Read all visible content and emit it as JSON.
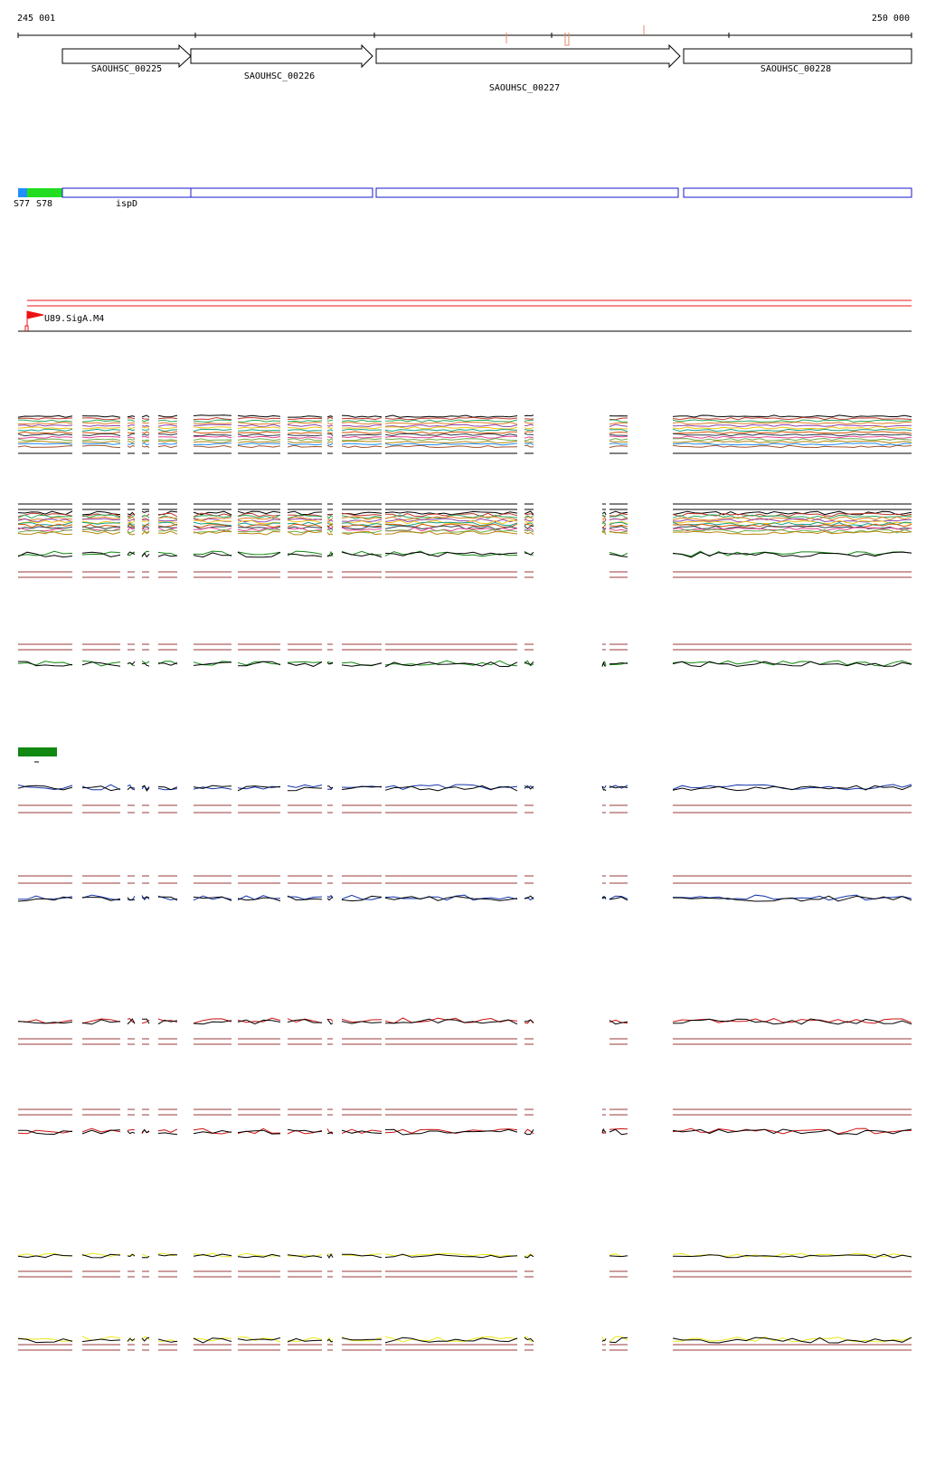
{
  "coordinates": {
    "start_label": "245 001",
    "end_label": "250 000",
    "start": 245001,
    "end": 250000
  },
  "genes": [
    {
      "id": "SAOUHSC_00225",
      "start": 245250,
      "end": 245970,
      "strand": "+"
    },
    {
      "id": "SAOUHSC_00226",
      "start": 245980,
      "end": 246980,
      "strand": "+"
    },
    {
      "id": "SAOUHSC_00227",
      "start": 247000,
      "end": 248700,
      "strand": "+"
    },
    {
      "id": "SAOUHSC_00228",
      "start": 248730,
      "end": 250000,
      "strand": "+"
    }
  ],
  "segments": {
    "labels": [
      "S77",
      "S78",
      "ispD"
    ],
    "colors": {
      "S77": "#1e90ff",
      "S78": "#22dd22",
      "outline": "#1a1acc"
    }
  },
  "promoter": {
    "label": "U89.SigA.M4",
    "color": "#ee1111"
  },
  "colors": {
    "green": "#118811",
    "blue": "#1133aa",
    "red": "#cc1111",
    "yellow": "#e8e81a",
    "black": "#000000",
    "threshold": "#9b3a3a"
  }
}
